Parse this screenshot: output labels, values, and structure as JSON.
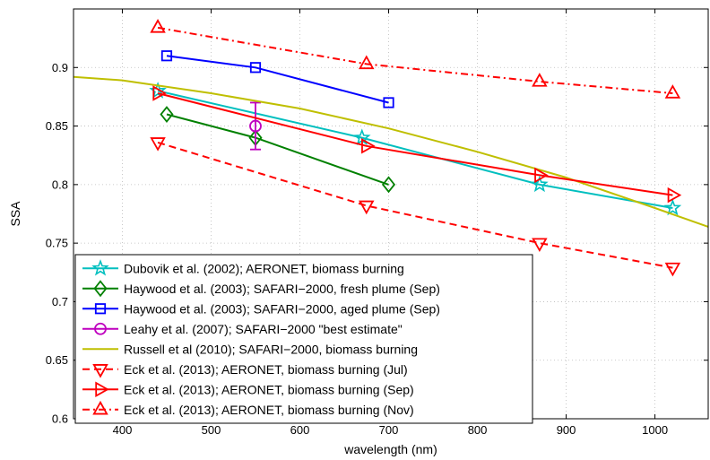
{
  "chart_data": {
    "type": "line",
    "title": "",
    "xlabel": "wavelength (nm)",
    "ylabel": "SSA",
    "xlim": [
      345,
      1060
    ],
    "ylim": [
      0.6,
      0.95
    ],
    "x_ticks": [
      400,
      500,
      600,
      700,
      800,
      900,
      1000
    ],
    "y_ticks": [
      0.6,
      0.65,
      0.7,
      0.75,
      0.8,
      0.85,
      0.9
    ],
    "grid": true,
    "legend_position": "bottom-left",
    "series": [
      {
        "name": "Dubovik et al. (2002); AERONET, biomass burning",
        "color": "#00bfbf",
        "dash": "solid",
        "marker": "star",
        "x": [
          440,
          670,
          870,
          1020
        ],
        "y": [
          0.88,
          0.84,
          0.8,
          0.78
        ]
      },
      {
        "name": "Haywood et al. (2003); SAFARI−2000, fresh plume (Sep)",
        "color": "#008000",
        "dash": "solid",
        "marker": "diamond",
        "x": [
          450,
          550,
          700
        ],
        "y": [
          0.86,
          0.84,
          0.8
        ]
      },
      {
        "name": "Haywood et al. (2003); SAFARI−2000, aged plume (Sep)",
        "color": "#0000ff",
        "dash": "solid",
        "marker": "square",
        "x": [
          450,
          550,
          700
        ],
        "y": [
          0.91,
          0.9,
          0.87
        ]
      },
      {
        "name": "Leahy et al. (2007); SAFARI−2000 \"best estimate\"",
        "color": "#bf00bf",
        "dash": "solid",
        "marker": "circle",
        "x": [
          550
        ],
        "y": [
          0.85
        ],
        "yerr": [
          0.02
        ]
      },
      {
        "name": "Russell et al (2010); SAFARI−2000, biomass burning",
        "color": "#bfbf00",
        "dash": "solid",
        "marker": "none",
        "x": [
          345,
          400,
          500,
          600,
          700,
          800,
          900,
          1000,
          1060
        ],
        "y": [
          0.892,
          0.889,
          0.878,
          0.865,
          0.848,
          0.828,
          0.806,
          0.78,
          0.764
        ]
      },
      {
        "name": "Eck et al. (2013); AERONET, biomass burning (Jul)",
        "color": "#ff0000",
        "dash": "dashed",
        "marker": "triangle-down",
        "x": [
          440,
          675,
          870,
          1020
        ],
        "y": [
          0.836,
          0.782,
          0.75,
          0.729
        ]
      },
      {
        "name": "Eck et al. (2013); AERONET, biomass burning (Sep)",
        "color": "#ff0000",
        "dash": "solid",
        "marker": "triangle-right",
        "x": [
          440,
          675,
          870,
          1020
        ],
        "y": [
          0.878,
          0.833,
          0.808,
          0.791
        ]
      },
      {
        "name": "Eck et al. (2013); AERONET, biomass burning (Nov)",
        "color": "#ff0000",
        "dash": "dashdot",
        "marker": "triangle-up",
        "x": [
          440,
          675,
          870,
          1020
        ],
        "y": [
          0.934,
          0.903,
          0.888,
          0.878
        ]
      }
    ]
  }
}
